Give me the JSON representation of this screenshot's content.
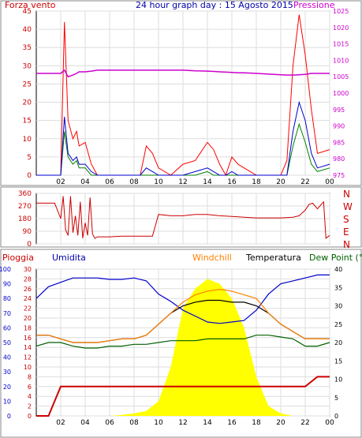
{
  "chart_data": [
    {
      "type": "line",
      "panel": "wind-pressure",
      "title": "24 hour graph day : 15 Agosto 2015",
      "left_axis_label": "Forza vento",
      "right_axis_label": "Pressione",
      "left_ylim": [
        0,
        45
      ],
      "right_ylim": [
        975,
        1025
      ],
      "left_ticks": [
        "0",
        "5",
        "10",
        "15",
        "20",
        "25",
        "30",
        "35",
        "40",
        "45"
      ],
      "right_ticks": [
        "975",
        "980",
        "985",
        "990",
        "995",
        "1000",
        "1005",
        "1010",
        "1015",
        "1020",
        "1025"
      ],
      "x_ticks": [
        "02",
        "04",
        "06",
        "08",
        "10",
        "12",
        "14",
        "16",
        "18",
        "20",
        "22",
        "00"
      ],
      "grid": true,
      "x": [
        0,
        1,
        2,
        2.3,
        2.6,
        3,
        3.3,
        3.5,
        4,
        4.5,
        5,
        6,
        8,
        8.5,
        9,
        9.5,
        10,
        11,
        12,
        13,
        14,
        14.5,
        15,
        15.5,
        16,
        16.5,
        17,
        18,
        19,
        20,
        20.5,
        21,
        21.5,
        22,
        22.5,
        23,
        24
      ],
      "series": [
        {
          "axis": "left",
          "color": "#ff0000",
          "values": [
            0,
            0,
            0,
            42,
            15,
            10,
            12,
            8,
            9,
            3,
            0,
            0,
            0,
            0,
            8,
            6,
            2,
            0,
            3,
            4,
            9,
            7,
            3,
            0,
            5,
            3,
            2,
            0,
            0,
            0,
            4,
            30,
            44,
            33,
            18,
            6,
            7
          ]
        },
        {
          "axis": "left",
          "color": "#008000",
          "values": [
            0,
            0,
            0,
            12,
            5,
            3,
            4,
            2,
            2,
            0,
            0,
            0,
            0,
            0,
            0,
            0,
            0,
            0,
            0,
            0,
            1,
            0,
            0,
            0,
            0,
            0,
            0,
            0,
            0,
            0,
            0,
            8,
            14,
            9,
            3,
            1,
            2
          ]
        },
        {
          "axis": "left",
          "color": "#0000cc",
          "values": [
            0,
            0,
            0,
            16,
            6,
            4,
            5,
            3,
            3,
            1,
            0,
            0,
            0,
            0,
            2,
            1,
            0,
            0,
            0,
            1,
            2,
            1,
            0,
            0,
            1,
            0,
            0,
            0,
            0,
            0,
            0,
            12,
            20,
            15,
            6,
            2,
            3
          ]
        },
        {
          "axis": "right",
          "color": "#cc00cc",
          "values": [
            1006,
            1006,
            1006,
            1007,
            1005,
            1005.5,
            1006,
            1006.5,
            1006.5,
            1006.7,
            1007,
            1007,
            1007,
            1007,
            1007,
            1007,
            1007,
            1007,
            1007,
            1006.8,
            1006.7,
            1006.6,
            1006.5,
            1006.4,
            1006.3,
            1006.2,
            1006.2,
            1006,
            1005.8,
            1005.6,
            1005.5,
            1005.5,
            1005.6,
            1005.7,
            1006,
            1006,
            1006
          ]
        }
      ]
    },
    {
      "type": "line",
      "panel": "wind-direction",
      "left_ticks": [
        "0",
        "90",
        "180",
        "270",
        "360"
      ],
      "right_labels": [
        "N",
        "W",
        "S",
        "E",
        "N"
      ],
      "ylim": [
        0,
        360
      ],
      "x_ticks": [
        "02",
        "04",
        "06",
        "08",
        "10",
        "12",
        "14",
        "16",
        "18",
        "20",
        "22",
        "00"
      ],
      "grid": true,
      "x": [
        0,
        0.5,
        1,
        1.5,
        2,
        2.2,
        2.4,
        2.6,
        2.8,
        3,
        3.2,
        3.4,
        3.6,
        3.8,
        4,
        4.2,
        4.4,
        4.6,
        4.8,
        5,
        6,
        7,
        8,
        8.5,
        9,
        9.5,
        10,
        11,
        12,
        13,
        14,
        14.5,
        15,
        16,
        17,
        18,
        19,
        20,
        21,
        21.5,
        22,
        22.3,
        22.6,
        23,
        23.5,
        23.7,
        24
      ],
      "series": [
        {
          "name": "",
          "color": "#cc0000",
          "values": [
            290,
            290,
            290,
            290,
            180,
            340,
            100,
            60,
            340,
            80,
            200,
            60,
            300,
            40,
            150,
            60,
            330,
            70,
            40,
            50,
            50,
            55,
            55,
            55,
            55,
            55,
            210,
            200,
            200,
            210,
            210,
            205,
            200,
            195,
            190,
            185,
            185,
            185,
            190,
            200,
            240,
            280,
            290,
            250,
            300,
            40,
            60
          ]
        }
      ]
    },
    {
      "type": "area",
      "panel": "rain-humidity-temperature",
      "labels": {
        "rain": "Pioggia",
        "humidity": "Umidita",
        "windchill": "Windchill",
        "temperature": "Temperatura",
        "dewpoint": "Dew Point (°C"
      },
      "left_ticks_humidity": [
        "0",
        "10",
        "20",
        "30",
        "40",
        "50",
        "60",
        "70",
        "80",
        "90",
        "100"
      ],
      "left_ticks_rain": [
        "0",
        "2",
        "4",
        "6",
        "8",
        "10",
        "12",
        "14",
        "16",
        "18",
        "20",
        "22",
        "24",
        "26",
        "28",
        "30"
      ],
      "right_ticks": [
        "0",
        "5",
        "10",
        "15",
        "20",
        "25",
        "30",
        "35",
        "40"
      ],
      "humidity_ylim": [
        0,
        100
      ],
      "rain_ylim": [
        0,
        30
      ],
      "temp_ylim": [
        0,
        40
      ],
      "x_ticks": [
        "02",
        "04",
        "06",
        "08",
        "10",
        "12",
        "14",
        "16",
        "18",
        "20",
        "22",
        "00"
      ],
      "grid": true,
      "x": [
        0,
        1,
        2,
        3,
        4,
        5,
        6,
        7,
        8,
        9,
        10,
        11,
        12,
        13,
        14,
        15,
        16,
        17,
        18,
        19,
        20,
        21,
        22,
        23,
        24
      ],
      "series": [
        {
          "name": "Umidita",
          "axis": "humidity",
          "color": "#0000cc",
          "values": [
            80,
            88,
            91,
            94,
            94,
            94,
            93,
            93,
            94,
            92,
            83,
            78,
            72,
            68,
            64,
            63,
            64,
            65,
            72,
            83,
            90,
            92,
            94,
            96,
            96
          ]
        },
        {
          "name": "Temperatura",
          "axis": "temp",
          "color": "#000000",
          "values": [
            22,
            22,
            21,
            20,
            20,
            20,
            20.5,
            21,
            21,
            22,
            25,
            28,
            30,
            31,
            31.5,
            31.5,
            31,
            31,
            30,
            28,
            25,
            23,
            21,
            21,
            21
          ]
        },
        {
          "name": "Windchill",
          "axis": "temp",
          "color": "#ff8000",
          "values": [
            22,
            22,
            21,
            20,
            20,
            20,
            20.5,
            21,
            21,
            22,
            25,
            28,
            31,
            33,
            34,
            34.5,
            34,
            33,
            32,
            28,
            25,
            23,
            21,
            21,
            21
          ]
        },
        {
          "name": "Dew Point (°C",
          "axis": "temp",
          "color": "#006000",
          "values": [
            19,
            20,
            20,
            19,
            18.5,
            18.5,
            19,
            19,
            19.5,
            19.5,
            20,
            20.5,
            20.5,
            20.5,
            21,
            21,
            21,
            21,
            22,
            22,
            21.5,
            21,
            19,
            19,
            20
          ]
        },
        {
          "name": "Pioggia",
          "axis": "rain",
          "color": "#cc0000",
          "values": [
            0,
            0,
            6,
            6,
            6,
            6,
            6,
            6,
            6,
            6,
            6,
            6,
            6,
            6,
            6,
            6,
            6,
            6,
            6,
            6,
            6,
            6,
            6,
            8,
            8
          ]
        }
      ],
      "solar": {
        "color": "#ffff00",
        "x": [
          0,
          6,
          7,
          8,
          9,
          10,
          11,
          12,
          13,
          14,
          15,
          16,
          17,
          18,
          19,
          20,
          21,
          24
        ],
        "values": [
          0,
          0,
          0.2,
          0.5,
          1,
          3,
          10,
          22,
          26,
          28,
          27,
          24,
          18,
          8,
          2,
          0.5,
          0,
          0
        ]
      }
    }
  ]
}
